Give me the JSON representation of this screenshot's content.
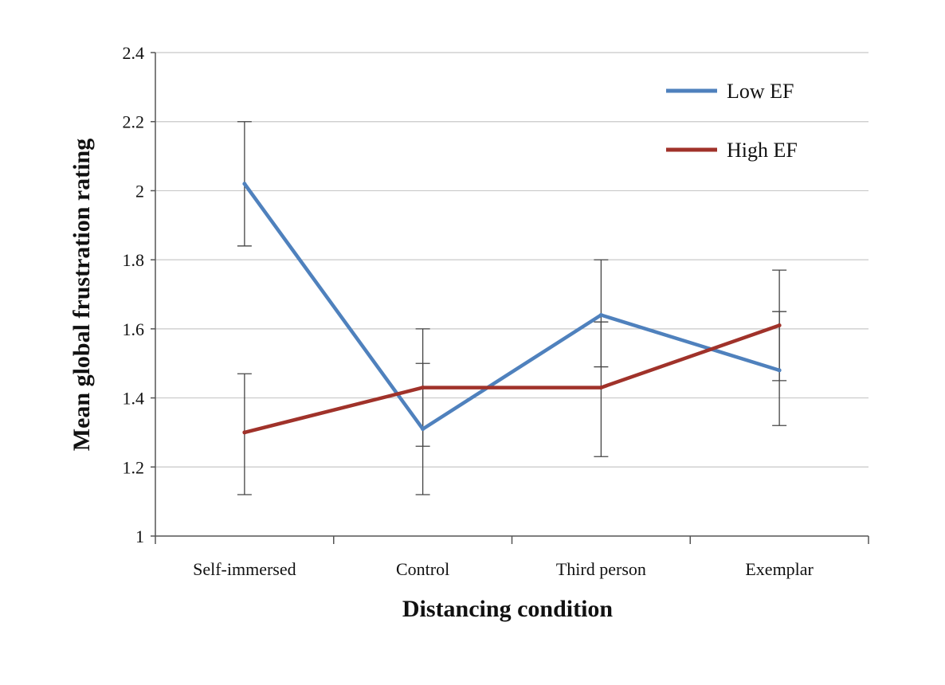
{
  "chart_data": {
    "type": "line",
    "title": "",
    "xlabel": "Distancing condition",
    "ylabel": "Mean global frustration rating",
    "categories": [
      "Self-immersed",
      "Control",
      "Third person",
      "Exemplar"
    ],
    "ylim": [
      1,
      2.4
    ],
    "yticks": [
      1,
      1.2,
      1.4,
      1.6,
      1.8,
      2,
      2.2,
      2.4
    ],
    "ytick_labels": [
      "1",
      "1.2",
      "1.4",
      "1.6",
      "1.8",
      "2",
      "2.2",
      "2.4"
    ],
    "grid": "horizontal",
    "legend_position": "top-right",
    "series": [
      {
        "name": "Low EF",
        "color": "#4f81bd",
        "values": [
          2.02,
          1.31,
          1.64,
          1.48
        ],
        "error_low": [
          1.84,
          1.12,
          1.49,
          1.32
        ],
        "error_high": [
          2.2,
          1.5,
          1.8,
          1.65
        ]
      },
      {
        "name": "High EF",
        "color": "#a0322a",
        "values": [
          1.3,
          1.43,
          1.43,
          1.61
        ],
        "error_low": [
          1.12,
          1.26,
          1.23,
          1.45
        ],
        "error_high": [
          1.47,
          1.6,
          1.62,
          1.77
        ]
      }
    ]
  }
}
